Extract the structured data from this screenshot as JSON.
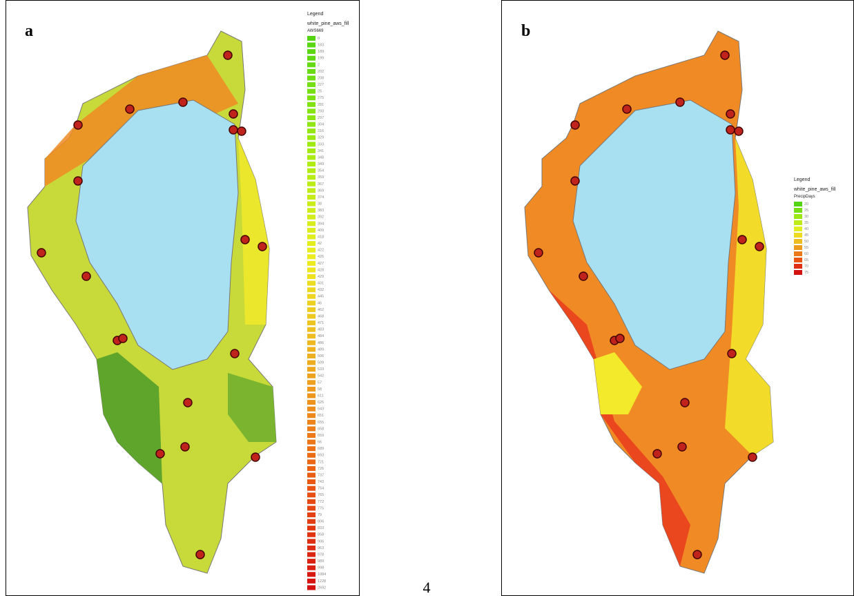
{
  "panels": [
    {
      "label": "a",
      "legend": {
        "title": "Legend",
        "layer": "white_pine_aws_fill",
        "field": "AWS669",
        "entries": [
          "0",
          "183",
          "189",
          "199",
          "2",
          "202",
          "208",
          "227",
          "25",
          "275",
          "281",
          "293",
          "297",
          "304",
          "316",
          "329",
          "333",
          "341",
          "348",
          "349",
          "354",
          "359",
          "367",
          "369",
          "374",
          "38",
          "383",
          "392",
          "394",
          "409",
          "418",
          "42",
          "422",
          "426",
          "427",
          "428",
          "429",
          "431",
          "432",
          "445",
          "46",
          "462",
          "468",
          "471",
          "483",
          "484",
          "486",
          "489",
          "506",
          "509",
          "533",
          "542",
          "57",
          "58",
          "611",
          "625",
          "643",
          "651",
          "655",
          "658",
          "659",
          "66",
          "689",
          "693",
          "721",
          "726",
          "737",
          "743",
          "754",
          "765",
          "772",
          "775",
          "79",
          "806",
          "833",
          "858",
          "906",
          "963",
          "978",
          "989",
          "998",
          "1084",
          "1228",
          "2692"
        ]
      }
    },
    {
      "label": "b",
      "legend": {
        "title": "Legend",
        "layer": "white_pine_aws_fill",
        "field": "PrecipDays",
        "entries": [
          "20",
          "25",
          "30",
          "35",
          "40",
          "45",
          "50",
          "55",
          "60",
          "65",
          "70",
          "75"
        ]
      }
    }
  ],
  "page_number": "4"
}
